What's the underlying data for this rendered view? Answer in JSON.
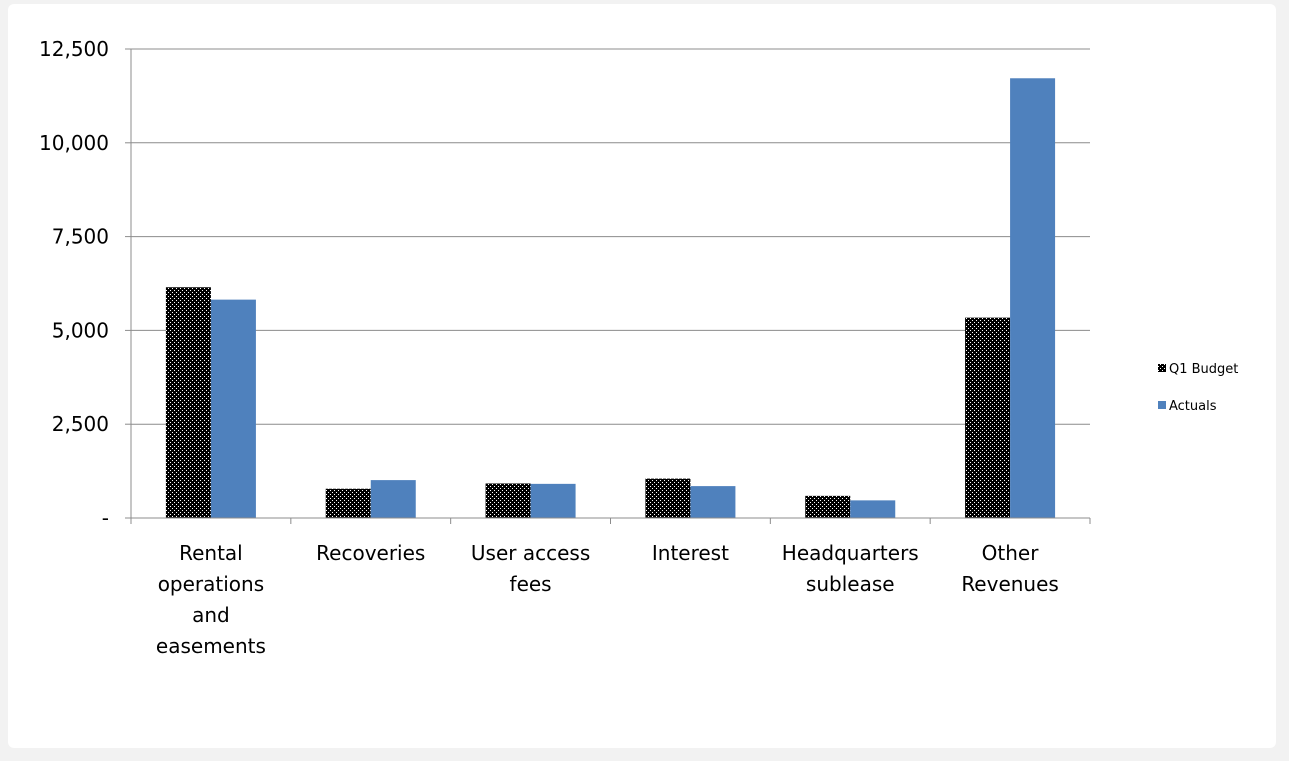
{
  "chart_data": {
    "type": "bar",
    "title": "",
    "xlabel": "",
    "ylabel": "",
    "categories": [
      [
        "Rental",
        "operations",
        "and",
        "easements"
      ],
      [
        "Recoveries"
      ],
      [
        "User access",
        "fees"
      ],
      [
        "Interest"
      ],
      [
        "Headquarters",
        "sublease"
      ],
      [
        "Other",
        "Revenues"
      ]
    ],
    "series": [
      {
        "name": "Q1 Budget",
        "values": [
          6150,
          780,
          920,
          1050,
          590,
          5340
        ],
        "color": "#000000",
        "pattern": "dotted"
      },
      {
        "name": "Actuals",
        "values": [
          5820,
          1010,
          910,
          850,
          470,
          11720
        ],
        "color": "#4f81bd",
        "pattern": "solid"
      }
    ],
    "ylim": [
      0,
      12500
    ],
    "yticks": [
      0,
      2500,
      5000,
      7500,
      10000,
      12500
    ],
    "ytick_labels": [
      "-",
      "2,500",
      "5,000",
      "7,500",
      "10,000",
      "12,500"
    ],
    "grid": true,
    "legend_position": "right"
  }
}
